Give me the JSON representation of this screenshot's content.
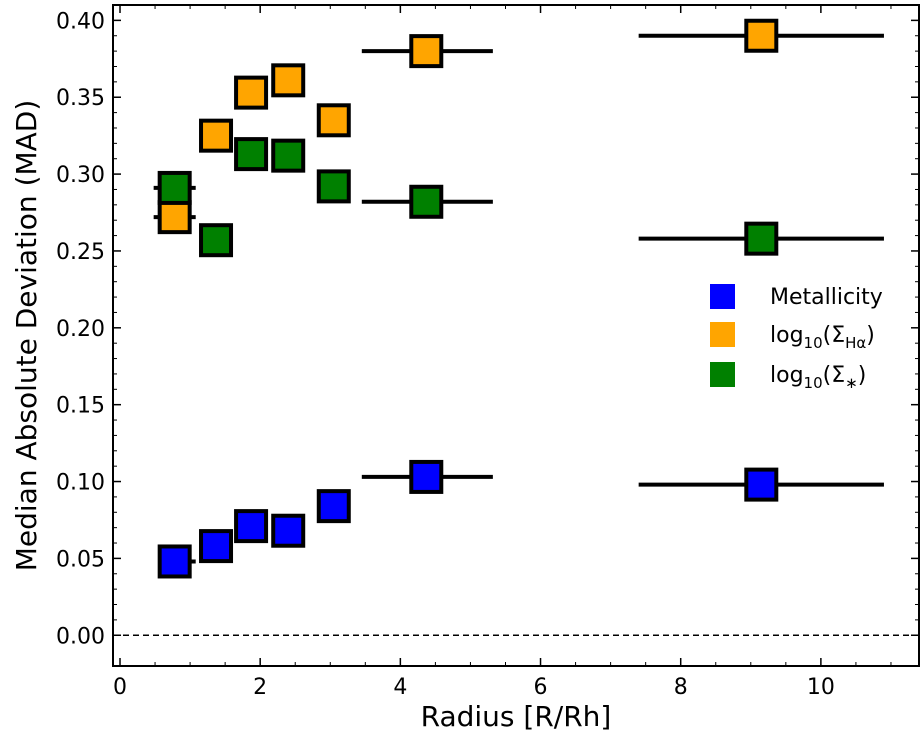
{
  "chart_data": {
    "type": "scatter",
    "xlabel": "Radius [R/Rh]",
    "ylabel": "Median Absolute Deviation (MAD)",
    "xlim": [
      -0.1,
      11.4
    ],
    "ylim": [
      -0.02,
      0.41
    ],
    "x_ticks": [
      "0",
      "2",
      "4",
      "6",
      "8",
      "10"
    ],
    "y_ticks": [
      "0.00",
      "0.05",
      "0.10",
      "0.15",
      "0.20",
      "0.25",
      "0.30",
      "0.35",
      "0.40"
    ],
    "reference_line": {
      "y": 0.0,
      "style": "dashed"
    },
    "legend": {
      "position": "center-right",
      "entries": [
        {
          "label": "Metallicity",
          "color": "#0000ff"
        },
        {
          "label": "log10(ΣHα)",
          "color": "#ffa500"
        },
        {
          "label": "log10(Σ*)",
          "color": "#008000"
        }
      ]
    },
    "series": [
      {
        "name": "Metallicity",
        "color": "#0000ff",
        "points": [
          {
            "x": 0.78,
            "y": 0.048,
            "xerr": [
              0.68,
              1.08
            ]
          },
          {
            "x": 1.37,
            "y": 0.058
          },
          {
            "x": 1.87,
            "y": 0.071
          },
          {
            "x": 2.4,
            "y": 0.068
          },
          {
            "x": 3.05,
            "y": 0.084,
            "xerr": [
              2.95,
              3.25
            ]
          },
          {
            "x": 4.37,
            "y": 0.103,
            "xerr": [
              3.45,
              5.32
            ]
          },
          {
            "x": 9.15,
            "y": 0.098,
            "xerr": [
              7.4,
              10.9
            ]
          }
        ]
      },
      {
        "name": "log10(ΣHα)",
        "color": "#ffa500",
        "points": [
          {
            "x": 0.78,
            "y": 0.272,
            "xerr": [
              0.48,
              1.08
            ]
          },
          {
            "x": 1.37,
            "y": 0.325
          },
          {
            "x": 1.87,
            "y": 0.353
          },
          {
            "x": 2.4,
            "y": 0.361
          },
          {
            "x": 3.05,
            "y": 0.335,
            "xerr": [
              2.85,
              3.25
            ]
          },
          {
            "x": 4.37,
            "y": 0.38,
            "xerr": [
              3.45,
              5.32
            ]
          },
          {
            "x": 9.15,
            "y": 0.39,
            "xerr": [
              7.4,
              10.9
            ]
          }
        ]
      },
      {
        "name": "log10(Σ*)",
        "color": "#008000",
        "points": [
          {
            "x": 0.78,
            "y": 0.291,
            "xerr": [
              0.48,
              1.08
            ]
          },
          {
            "x": 1.37,
            "y": 0.257
          },
          {
            "x": 1.87,
            "y": 0.313
          },
          {
            "x": 2.4,
            "y": 0.312
          },
          {
            "x": 3.05,
            "y": 0.292,
            "xerr": [
              2.85,
              3.25
            ]
          },
          {
            "x": 4.37,
            "y": 0.282,
            "xerr": [
              3.45,
              5.32
            ]
          },
          {
            "x": 9.15,
            "y": 0.258,
            "xerr": [
              7.4,
              10.9
            ]
          }
        ]
      }
    ]
  }
}
